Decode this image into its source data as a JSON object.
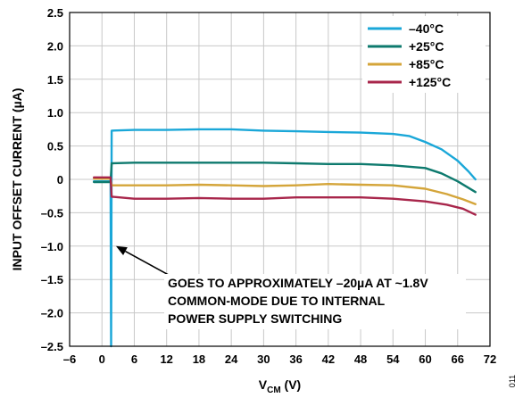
{
  "chart_data": {
    "type": "line",
    "xlabel_main": "V",
    "xlabel_sub": "CM",
    "xlabel_unit": " (V)",
    "ylabel": "INPUT OFFSET CURRENT (µA)",
    "xlim": [
      -6,
      72
    ],
    "ylim": [
      -2.5,
      2.5
    ],
    "xticks": [
      -6,
      0,
      6,
      12,
      18,
      24,
      30,
      36,
      42,
      48,
      54,
      60,
      66,
      72
    ],
    "xtick_labels": [
      "–6",
      "0",
      "6",
      "12",
      "18",
      "24",
      "30",
      "36",
      "42",
      "48",
      "54",
      "60",
      "66",
      "72"
    ],
    "yticks": [
      2.5,
      2.0,
      1.5,
      1.0,
      0.5,
      0,
      -0.5,
      -1.0,
      -1.5,
      -2.0,
      -2.5
    ],
    "ytick_labels": [
      "2.5",
      "2.0",
      "1.5",
      "1.0",
      "0.5",
      "0",
      "–0.5",
      "–1.0",
      "–1.5",
      "–2.0",
      "–2.5"
    ],
    "grid": true,
    "legend_position": "top-right",
    "series": [
      {
        "name": "–40°C",
        "color": "#1aa7d8",
        "points": [
          [
            -1.5,
            -0.03
          ],
          [
            1.6,
            -0.03
          ],
          [
            1.7,
            -2.5
          ],
          [
            1.8,
            0.73
          ],
          [
            6,
            0.74
          ],
          [
            12,
            0.74
          ],
          [
            18,
            0.75
          ],
          [
            24,
            0.75
          ],
          [
            30,
            0.73
          ],
          [
            36,
            0.72
          ],
          [
            42,
            0.71
          ],
          [
            48,
            0.7
          ],
          [
            54,
            0.68
          ],
          [
            57,
            0.65
          ],
          [
            60,
            0.56
          ],
          [
            63,
            0.45
          ],
          [
            66,
            0.28
          ],
          [
            68,
            0.12
          ],
          [
            69.3,
            0.0
          ]
        ]
      },
      {
        "name": "+25°C",
        "color": "#0e7a6e",
        "points": [
          [
            -1.5,
            -0.04
          ],
          [
            1.6,
            -0.04
          ],
          [
            1.8,
            0.24
          ],
          [
            6,
            0.25
          ],
          [
            12,
            0.25
          ],
          [
            18,
            0.25
          ],
          [
            24,
            0.25
          ],
          [
            30,
            0.25
          ],
          [
            36,
            0.24
          ],
          [
            42,
            0.23
          ],
          [
            48,
            0.23
          ],
          [
            54,
            0.21
          ],
          [
            60,
            0.17
          ],
          [
            63,
            0.09
          ],
          [
            66,
            -0.03
          ],
          [
            69.3,
            -0.19
          ]
        ]
      },
      {
        "name": "+85°C",
        "color": "#d4a53a",
        "points": [
          [
            -1.5,
            0.01
          ],
          [
            1.6,
            0.01
          ],
          [
            1.8,
            -0.09
          ],
          [
            6,
            -0.09
          ],
          [
            12,
            -0.09
          ],
          [
            18,
            -0.08
          ],
          [
            24,
            -0.09
          ],
          [
            30,
            -0.1
          ],
          [
            36,
            -0.09
          ],
          [
            42,
            -0.07
          ],
          [
            48,
            -0.08
          ],
          [
            54,
            -0.09
          ],
          [
            60,
            -0.14
          ],
          [
            64,
            -0.22
          ],
          [
            67,
            -0.3
          ],
          [
            69.3,
            -0.37
          ]
        ]
      },
      {
        "name": "+125°C",
        "color": "#a8264b",
        "points": [
          [
            -1.5,
            0.03
          ],
          [
            1.6,
            0.03
          ],
          [
            1.8,
            -0.26
          ],
          [
            6,
            -0.29
          ],
          [
            12,
            -0.29
          ],
          [
            18,
            -0.28
          ],
          [
            24,
            -0.29
          ],
          [
            30,
            -0.29
          ],
          [
            36,
            -0.27
          ],
          [
            42,
            -0.27
          ],
          [
            48,
            -0.27
          ],
          [
            54,
            -0.29
          ],
          [
            60,
            -0.33
          ],
          [
            64,
            -0.38
          ],
          [
            67,
            -0.44
          ],
          [
            69.3,
            -0.53
          ]
        ]
      }
    ],
    "annotation": {
      "lines": [
        "GOES TO APPROXIMATELY –20µA AT ~1.8V",
        "COMMON-MODE DUE TO INTERNAL",
        "POWER SUPPLY SWITCHING"
      ],
      "arrow_from": [
        15.5,
        -1.57
      ],
      "arrow_to": [
        2.6,
        -1.0
      ]
    }
  },
  "figure_id": "011"
}
